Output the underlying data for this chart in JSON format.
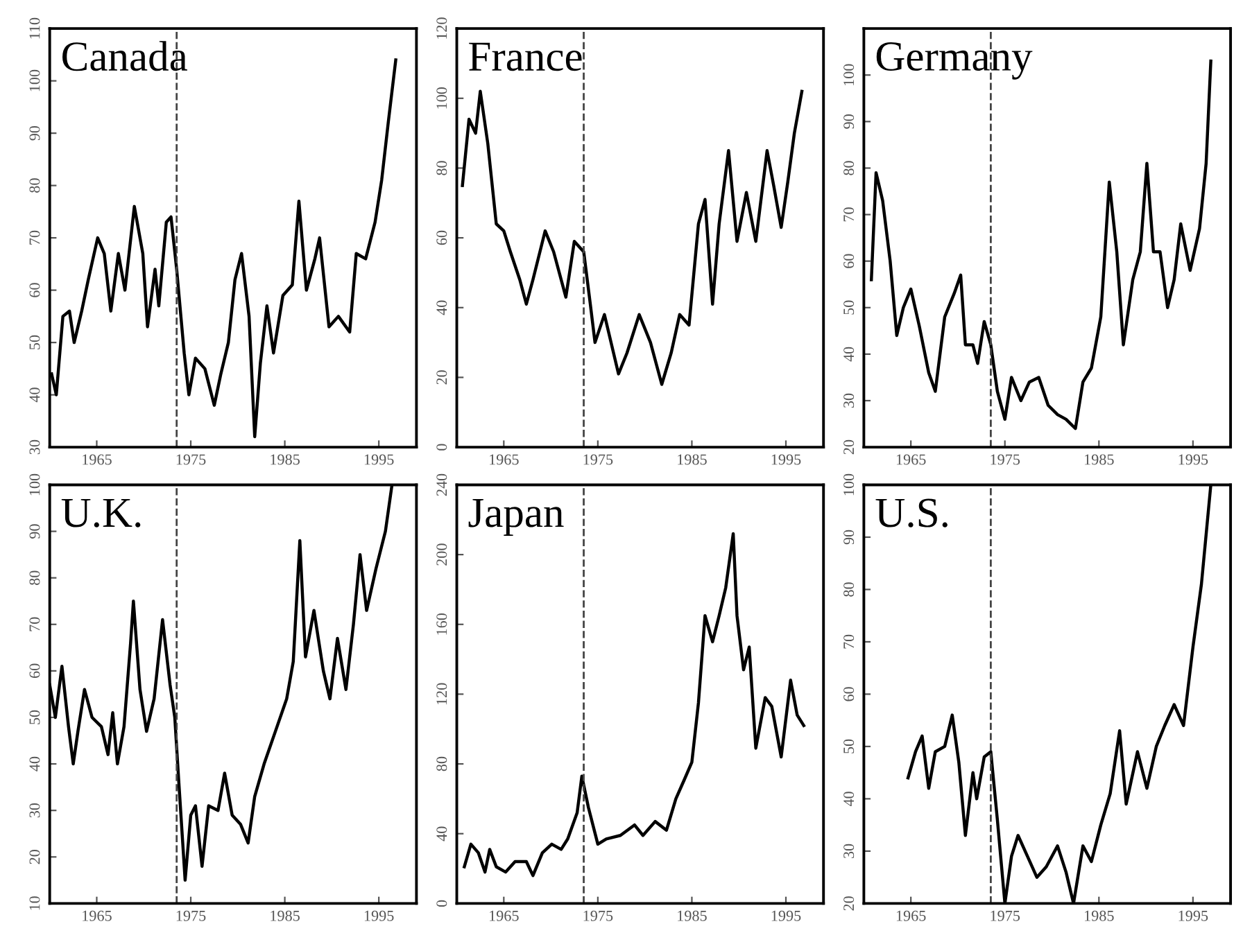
{
  "chart_data": [
    {
      "type": "line",
      "title": "Canada",
      "xlim": [
        1960,
        1999
      ],
      "xticks": [
        1965,
        1975,
        1985,
        1995
      ],
      "ylim": [
        30,
        110
      ],
      "yticks": [
        30,
        40,
        50,
        60,
        70,
        80,
        90,
        100,
        110
      ],
      "grid": false,
      "legend": false,
      "ref_lines": [
        {
          "axis": "x",
          "value": 1973.5,
          "line_style": "dashed"
        }
      ],
      "series": [
        {
          "color": "#000000",
          "x": [
            1960.2,
            1960.7,
            1961.4,
            1962.1,
            1962.6,
            1963.4,
            1964.1,
            1965.1,
            1965.8,
            1966.5,
            1967.3,
            1968.0,
            1969.0,
            1969.9,
            1970.4,
            1971.2,
            1971.6,
            1972.4,
            1972.9,
            1973.5,
            1974.3,
            1974.8,
            1975.5,
            1976.5,
            1977.5,
            1978.2,
            1979.0,
            1979.7,
            1980.4,
            1981.2,
            1981.8,
            1982.4,
            1983.1,
            1983.8,
            1984.8,
            1985.8,
            1986.5,
            1987.3,
            1988.2,
            1988.7,
            1989.7,
            1990.7,
            1991.9,
            1992.6,
            1993.6,
            1994.6,
            1995.3,
            1996.0,
            1996.8
          ],
          "values": [
            44,
            40,
            55,
            56,
            50,
            56,
            62,
            70,
            67,
            56,
            67,
            60,
            76,
            67,
            53,
            64,
            57,
            73,
            74,
            64,
            48,
            40,
            47,
            45,
            38,
            44,
            50,
            62,
            67,
            55,
            32,
            46,
            57,
            48,
            59,
            61,
            77,
            60,
            66,
            70,
            53,
            55,
            52,
            67,
            66,
            73,
            81,
            92,
            104
          ]
        }
      ]
    },
    {
      "type": "line",
      "title": "France",
      "xlim": [
        1960,
        1999
      ],
      "xticks": [
        1965,
        1975,
        1985,
        1995
      ],
      "ylim": [
        0,
        120
      ],
      "yticks": [
        0,
        20,
        40,
        60,
        80,
        100,
        120
      ],
      "grid": false,
      "legend": false,
      "ref_lines": [
        {
          "axis": "x",
          "value": 1973.5,
          "line_style": "dashed"
        }
      ],
      "series": [
        {
          "color": "#000000",
          "x": [
            1960.6,
            1961.3,
            1962.0,
            1962.5,
            1963.3,
            1964.2,
            1965.0,
            1965.7,
            1966.7,
            1967.4,
            1968.1,
            1969.4,
            1970.3,
            1971.6,
            1972.5,
            1973.5,
            1974.2,
            1974.7,
            1975.7,
            1977.2,
            1978.1,
            1979.4,
            1980.6,
            1981.8,
            1982.8,
            1983.7,
            1984.7,
            1985.7,
            1986.4,
            1987.2,
            1987.9,
            1988.9,
            1989.8,
            1990.8,
            1991.8,
            1993.0,
            1993.7,
            1994.5,
            1995.2,
            1995.9,
            1996.7
          ],
          "values": [
            75,
            94,
            90,
            102,
            87,
            64,
            62,
            56,
            48,
            41,
            48,
            62,
            56,
            43,
            59,
            56,
            41,
            30,
            38,
            21,
            27,
            38,
            30,
            18,
            27,
            38,
            35,
            64,
            71,
            41,
            64,
            85,
            59,
            73,
            59,
            85,
            75,
            63,
            76,
            90,
            102
          ]
        }
      ]
    },
    {
      "type": "line",
      "title": "Germany",
      "xlim": [
        1960,
        1999
      ],
      "xticks": [
        1965,
        1975,
        1985,
        1995
      ],
      "ylim": [
        20,
        110
      ],
      "yticks": [
        20,
        30,
        40,
        50,
        60,
        70,
        80,
        90,
        100
      ],
      "grid": false,
      "legend": false,
      "ref_lines": [
        {
          "axis": "x",
          "value": 1973.5,
          "line_style": "dashed"
        }
      ],
      "series": [
        {
          "color": "#000000",
          "x": [
            1960.8,
            1961.3,
            1962.0,
            1962.8,
            1963.5,
            1964.2,
            1965.0,
            1965.9,
            1966.9,
            1967.6,
            1968.6,
            1969.6,
            1970.3,
            1970.8,
            1971.6,
            1972.1,
            1972.8,
            1973.5,
            1974.2,
            1975.0,
            1975.7,
            1976.7,
            1977.6,
            1978.6,
            1979.6,
            1980.6,
            1981.5,
            1982.5,
            1983.3,
            1984.2,
            1985.2,
            1986.1,
            1986.9,
            1987.6,
            1988.6,
            1989.4,
            1990.1,
            1990.8,
            1991.5,
            1992.3,
            1993.0,
            1993.7,
            1994.7,
            1995.7,
            1996.4,
            1996.9
          ],
          "values": [
            56,
            79,
            73,
            60,
            44,
            50,
            54,
            46,
            36,
            32,
            48,
            53,
            57,
            42,
            42,
            38,
            47,
            42,
            32,
            26,
            35,
            30,
            34,
            35,
            29,
            27,
            26,
            24,
            34,
            37,
            48,
            77,
            62,
            42,
            56,
            62,
            81,
            62,
            62,
            50,
            56,
            68,
            58,
            67,
            81,
            103
          ]
        }
      ]
    },
    {
      "type": "line",
      "title": "U.K.",
      "xlim": [
        1960,
        1999
      ],
      "xticks": [
        1965,
        1975,
        1985,
        1995
      ],
      "ylim": [
        10,
        100
      ],
      "yticks": [
        10,
        20,
        30,
        40,
        50,
        60,
        70,
        80,
        90,
        100
      ],
      "grid": false,
      "legend": false,
      "ref_lines": [
        {
          "axis": "x",
          "value": 1973.5,
          "line_style": "dashed"
        }
      ],
      "series": [
        {
          "color": "#000000",
          "x": [
            1960.0,
            1960.6,
            1961.3,
            1962.0,
            1962.5,
            1963.0,
            1963.7,
            1964.5,
            1965.5,
            1966.2,
            1966.7,
            1967.2,
            1967.9,
            1968.6,
            1968.9,
            1969.6,
            1970.3,
            1971.1,
            1972.0,
            1972.8,
            1973.3,
            1973.7,
            1974.4,
            1975.0,
            1975.5,
            1976.2,
            1976.9,
            1977.9,
            1978.6,
            1979.4,
            1980.3,
            1981.1,
            1981.8,
            1982.8,
            1984.0,
            1985.2,
            1985.9,
            1986.6,
            1987.2,
            1988.1,
            1989.1,
            1989.8,
            1990.6,
            1991.5,
            1992.3,
            1993.0,
            1993.7,
            1994.7,
            1995.7,
            1996.4
          ],
          "values": [
            57,
            50,
            61,
            48,
            40,
            47,
            56,
            50,
            48,
            42,
            51,
            40,
            48,
            66,
            75,
            56,
            47,
            54,
            71,
            57,
            50,
            37,
            15,
            29,
            31,
            18,
            31,
            30,
            38,
            29,
            27,
            23,
            33,
            40,
            47,
            54,
            62,
            88,
            63,
            73,
            60,
            54,
            67,
            56,
            70,
            85,
            73,
            82,
            90,
            100
          ]
        }
      ]
    },
    {
      "type": "line",
      "title": "Japan",
      "xlim": [
        1960,
        1999
      ],
      "xticks": [
        1965,
        1975,
        1985,
        1995
      ],
      "ylim": [
        0,
        240
      ],
      "yticks": [
        0,
        40,
        80,
        120,
        160,
        200,
        240
      ],
      "grid": false,
      "legend": false,
      "ref_lines": [
        {
          "axis": "x",
          "value": 1973.5,
          "line_style": "dashed"
        }
      ],
      "series": [
        {
          "color": "#000000",
          "x": [
            1960.8,
            1961.5,
            1962.3,
            1963.0,
            1963.5,
            1964.2,
            1965.2,
            1966.2,
            1967.4,
            1968.1,
            1969.1,
            1970.1,
            1971.1,
            1971.8,
            1972.8,
            1973.3,
            1974.0,
            1975.0,
            1975.9,
            1977.4,
            1978.9,
            1979.8,
            1981.1,
            1982.3,
            1983.3,
            1984.2,
            1985.0,
            1985.7,
            1986.4,
            1987.2,
            1987.9,
            1988.6,
            1989.4,
            1989.8,
            1990.5,
            1991.1,
            1991.8,
            1992.8,
            1993.5,
            1994.5,
            1995.5,
            1996.2,
            1996.9
          ],
          "values": [
            21,
            34,
            29,
            18,
            31,
            21,
            18,
            24,
            24,
            16,
            29,
            34,
            31,
            37,
            52,
            73,
            55,
            34,
            37,
            39,
            45,
            39,
            47,
            42,
            60,
            71,
            81,
            115,
            165,
            150,
            165,
            181,
            212,
            165,
            134,
            147,
            89,
            118,
            113,
            84,
            128,
            108,
            102
          ]
        }
      ]
    },
    {
      "type": "line",
      "title": "U.S.",
      "xlim": [
        1960,
        1999
      ],
      "xticks": [
        1965,
        1975,
        1985,
        1995
      ],
      "ylim": [
        20,
        100
      ],
      "yticks": [
        20,
        30,
        40,
        50,
        60,
        70,
        80,
        90,
        100
      ],
      "grid": false,
      "legend": false,
      "ref_lines": [
        {
          "axis": "x",
          "value": 1973.5,
          "line_style": "dashed"
        }
      ],
      "series": [
        {
          "color": "#000000",
          "x": [
            1964.7,
            1965.5,
            1966.2,
            1966.9,
            1967.6,
            1968.6,
            1969.4,
            1970.1,
            1970.8,
            1971.6,
            1972.0,
            1972.8,
            1973.5,
            1974.2,
            1975.0,
            1975.7,
            1976.4,
            1977.4,
            1978.4,
            1979.4,
            1980.6,
            1981.5,
            1982.3,
            1983.3,
            1984.2,
            1985.2,
            1986.2,
            1987.2,
            1987.9,
            1989.1,
            1990.1,
            1991.1,
            1992.0,
            1993.0,
            1994.0,
            1995.0,
            1995.9,
            1996.9
          ],
          "values": [
            44,
            49,
            52,
            42,
            49,
            50,
            56,
            47,
            33,
            45,
            40,
            48,
            49,
            36,
            20,
            29,
            33,
            29,
            25,
            27,
            31,
            26,
            20,
            31,
            28,
            35,
            41,
            53,
            39,
            49,
            42,
            50,
            54,
            58,
            54,
            69,
            81,
            100
          ]
        }
      ]
    }
  ]
}
